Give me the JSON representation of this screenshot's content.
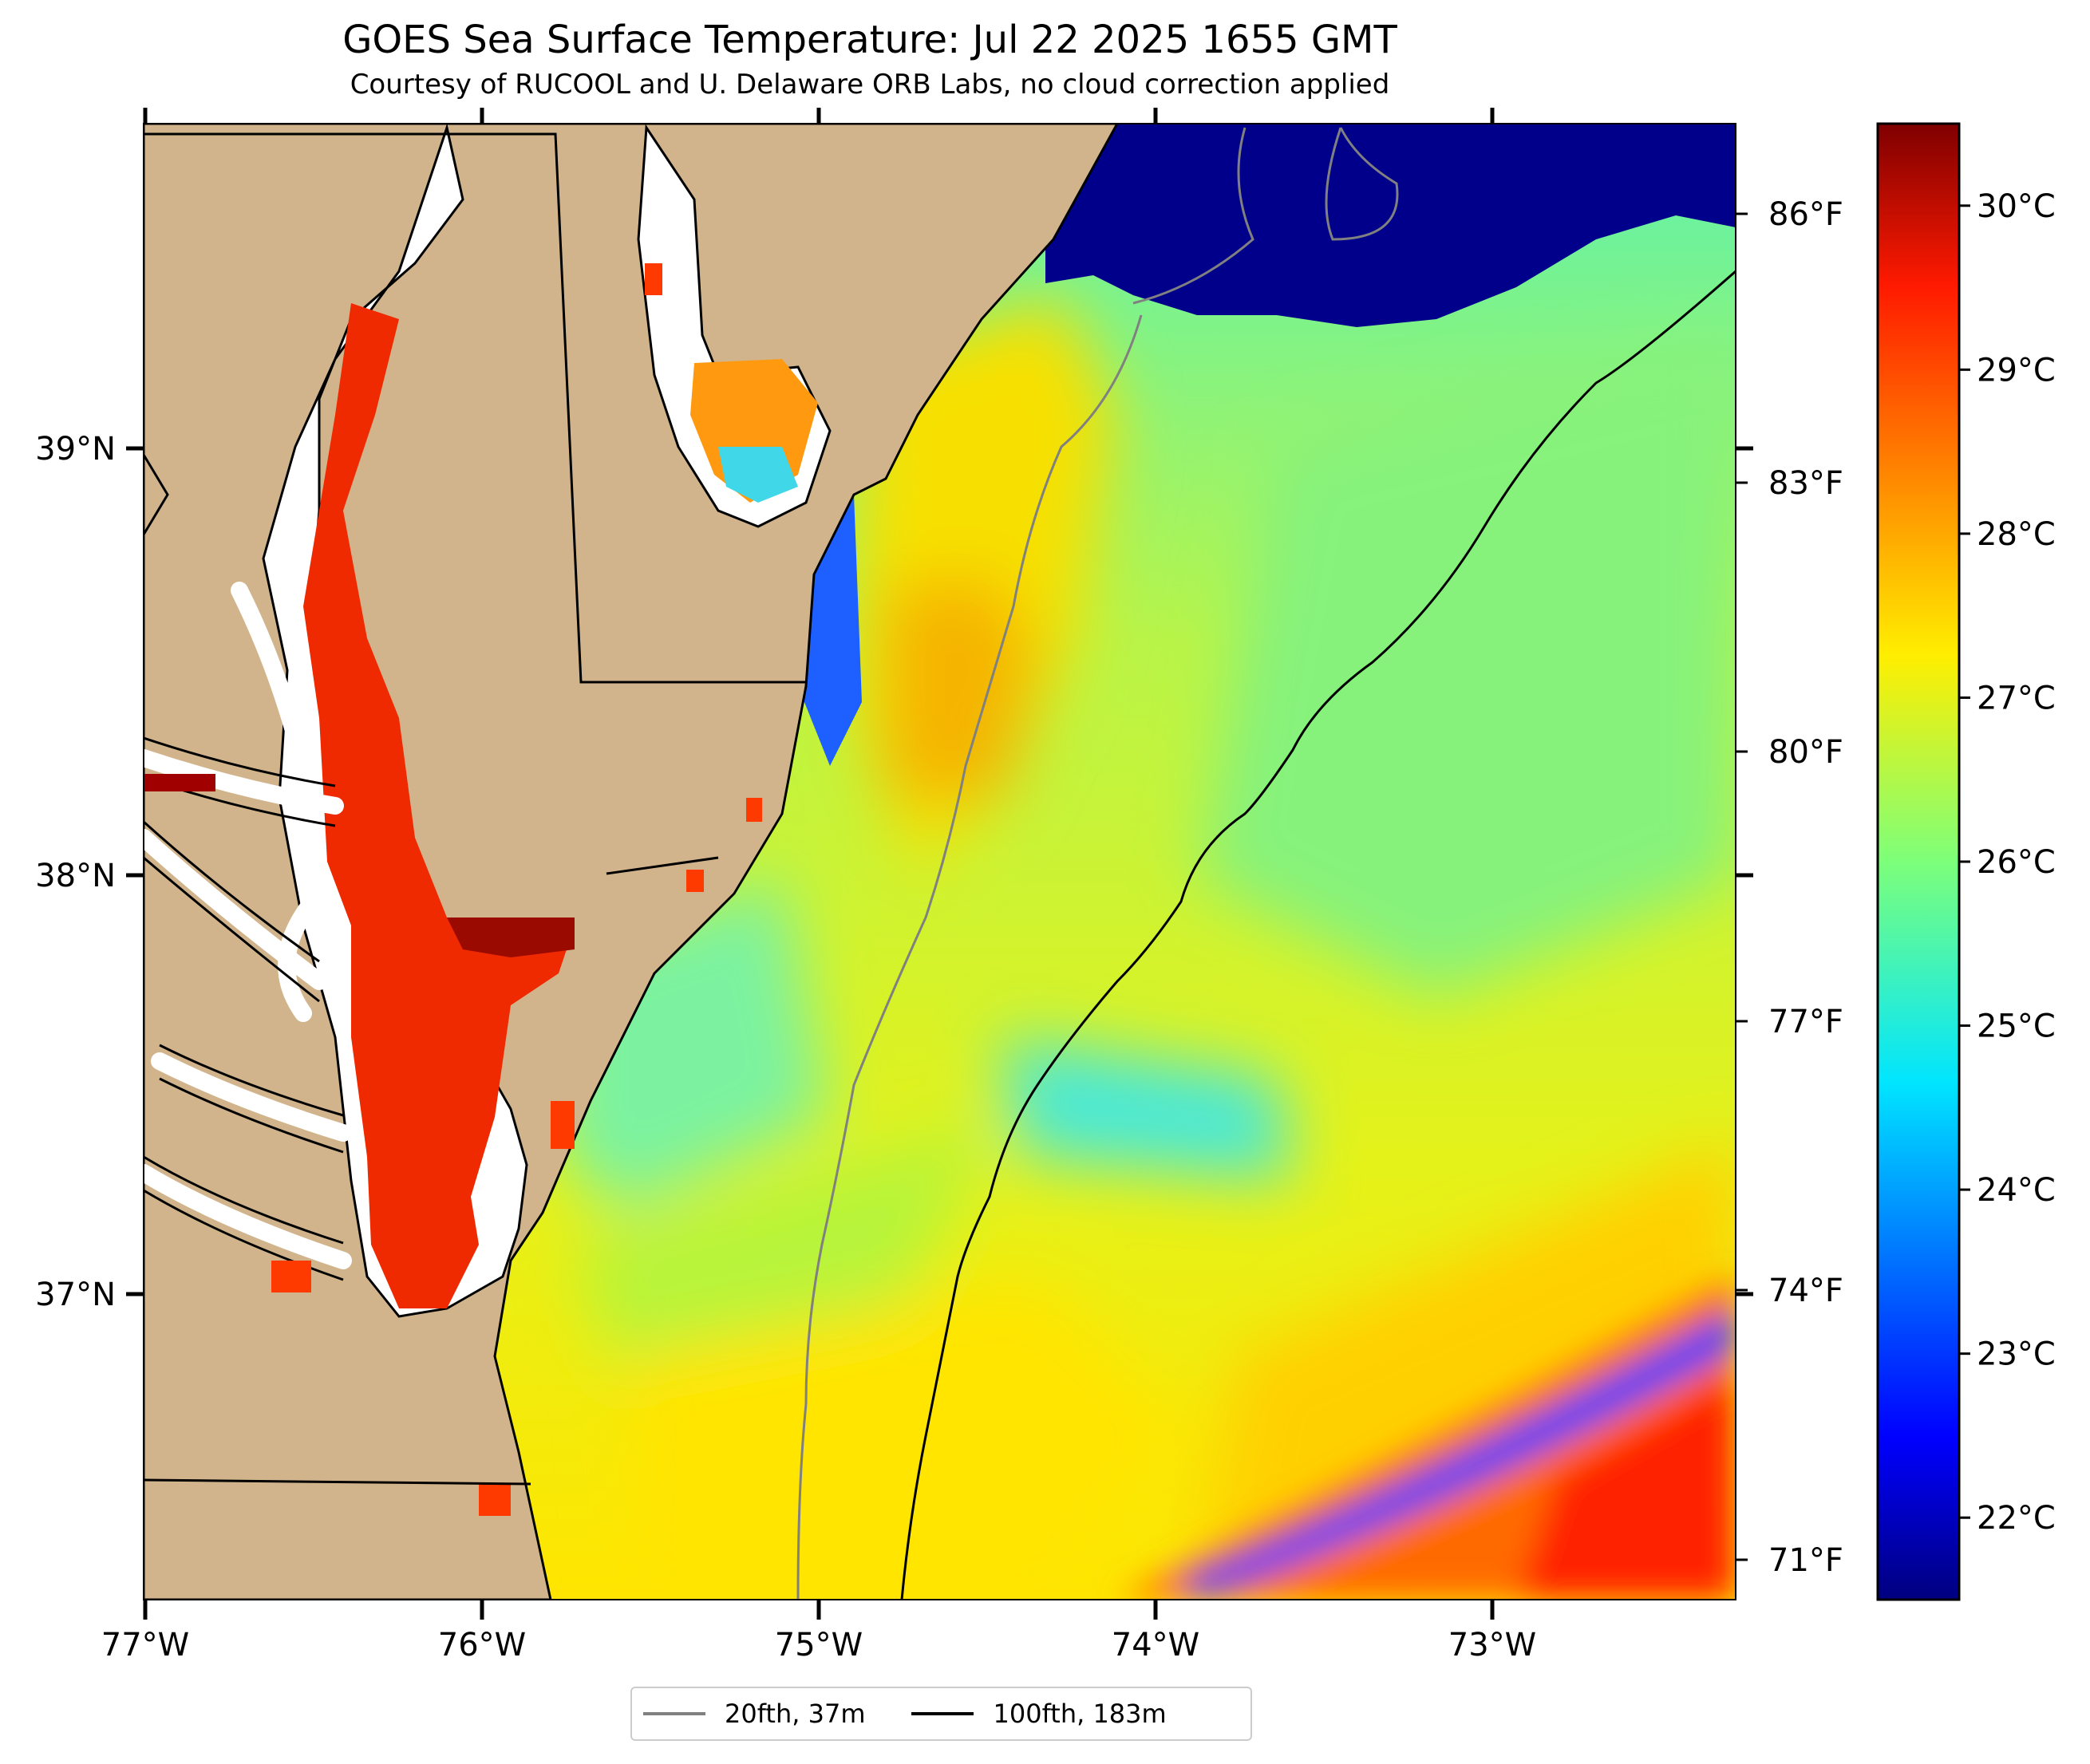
{
  "title": "GOES Sea Surface Temperature: Jul 22 2025 1655 GMT",
  "subtitle": "Courtesy of RUCOOL and U. Delaware ORB Labs, no cloud correction applied",
  "map": {
    "lon_range": [
      -77.0,
      -72.3
    ],
    "lat_range": [
      36.3,
      39.8
    ],
    "lon_labels": [
      "77°W",
      "76°W",
      "75°W",
      "74°W",
      "73°W"
    ],
    "lat_labels": [
      "39°N",
      "38°N",
      "37°N"
    ],
    "fahrenheit_labels": [
      "86°F",
      "83°F",
      "80°F",
      "77°F",
      "74°F",
      "71°F"
    ],
    "colors": {
      "land": "#d2b48c",
      "coast_line": "#000000",
      "isobath_20": "#808080",
      "isobath_100": "#000000",
      "cloud_mask": "#00008b"
    }
  },
  "colorbar": {
    "range_c": [
      21.5,
      30.5
    ],
    "tick_labels": [
      "22°C",
      "23°C",
      "24°C",
      "25°C",
      "26°C",
      "27°C",
      "28°C",
      "29°C",
      "30°C"
    ],
    "colormap": "jet"
  },
  "legend": {
    "items": [
      {
        "label": "20fth, 37m",
        "color": "#808080"
      },
      {
        "label": "100fth, 183m",
        "color": "#000000"
      }
    ]
  }
}
